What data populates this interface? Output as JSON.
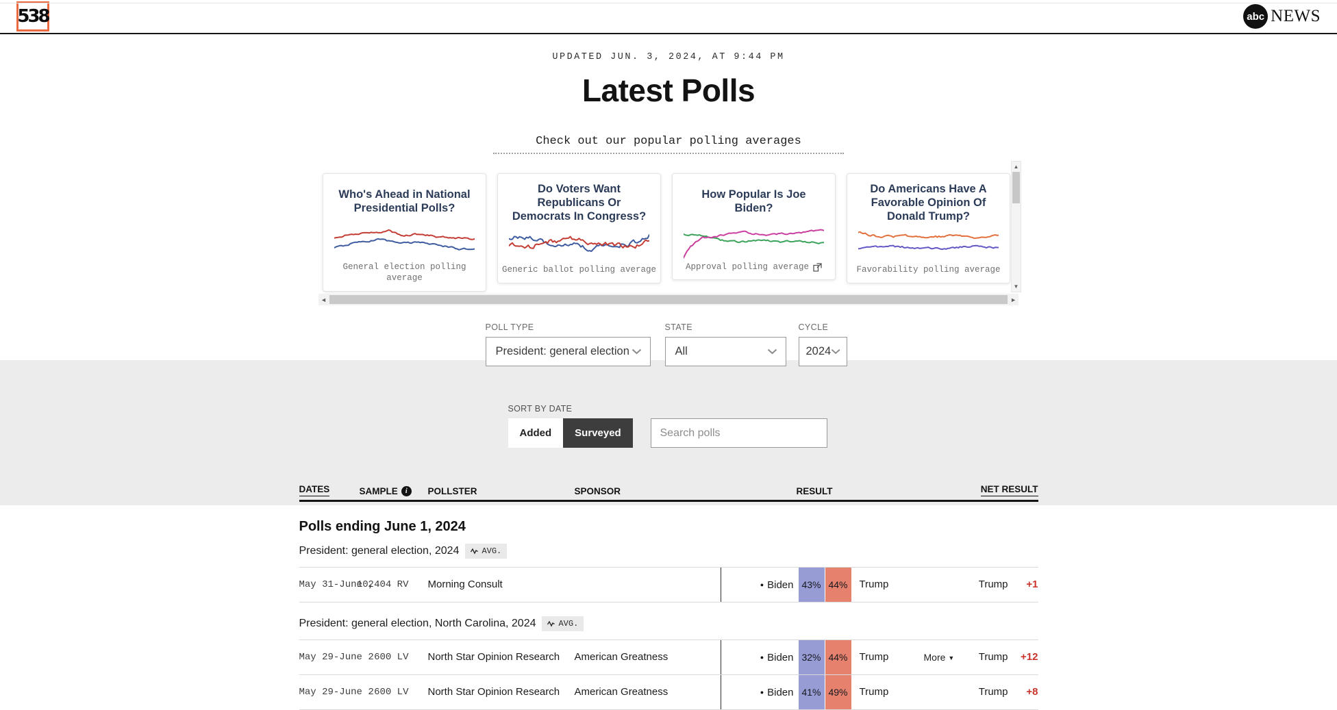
{
  "topbar": {
    "logo": "538",
    "abc": "abc",
    "news": "NEWS"
  },
  "hero": {
    "updated": "UPDATED JUN. 3, 2024, AT 9:44 PM",
    "title": "Latest Polls",
    "tagline": "Check out our popular polling averages"
  },
  "icons": {
    "incumbent_dot": "●",
    "more_caret": "▼",
    "info": "i",
    "scroll_up": "▲",
    "scroll_down": "▼",
    "scroll_left": "◄",
    "scroll_right": "►"
  },
  "carousel": {
    "cards": [
      {
        "title": "Who's Ahead in National Presidential Polls?",
        "caption": "General election polling average",
        "external": false,
        "series": [
          {
            "color": "#c43d34",
            "vol": 0.02,
            "seed": 11,
            "anchors": [
              [
                0,
                0.4
              ],
              [
                0.12,
                0.3
              ],
              [
                0.28,
                0.26
              ],
              [
                0.4,
                0.2
              ],
              [
                0.48,
                0.34
              ],
              [
                0.6,
                0.3
              ],
              [
                0.72,
                0.36
              ],
              [
                0.84,
                0.4
              ],
              [
                1,
                0.42
              ]
            ]
          },
          {
            "color": "#3e5c9f",
            "vol": 0.02,
            "seed": 22,
            "anchors": [
              [
                0,
                0.66
              ],
              [
                0.18,
                0.52
              ],
              [
                0.34,
                0.44
              ],
              [
                0.46,
                0.56
              ],
              [
                0.62,
                0.52
              ],
              [
                0.76,
                0.6
              ],
              [
                0.88,
                0.7
              ],
              [
                1,
                0.72
              ]
            ]
          }
        ]
      },
      {
        "title": "Do Voters Want Republicans Or Democrats In Congress?",
        "caption": "Generic ballot polling average",
        "external": false,
        "series": [
          {
            "color": "#3e5c9f",
            "vol": 0.05,
            "seed": 33,
            "anchors": [
              [
                0,
                0.34
              ],
              [
                0.14,
                0.28
              ],
              [
                0.3,
                0.52
              ],
              [
                0.44,
                0.46
              ],
              [
                0.58,
                0.62
              ],
              [
                0.74,
                0.5
              ],
              [
                0.9,
                0.46
              ],
              [
                0.97,
                0.28
              ],
              [
                1,
                0.22
              ]
            ]
          },
          {
            "color": "#c43d34",
            "vol": 0.05,
            "seed": 44,
            "anchors": [
              [
                0,
                0.5
              ],
              [
                0.14,
                0.58
              ],
              [
                0.3,
                0.4
              ],
              [
                0.44,
                0.36
              ],
              [
                0.58,
                0.44
              ],
              [
                0.74,
                0.52
              ],
              [
                0.9,
                0.54
              ],
              [
                1,
                0.4
              ]
            ]
          }
        ]
      },
      {
        "title": "How Popular Is Joe Biden?",
        "caption": "Approval polling average",
        "external": true,
        "series": [
          {
            "color": "#3ca35a",
            "vol": 0.02,
            "seed": 55,
            "anchors": [
              [
                0,
                0.3
              ],
              [
                0.12,
                0.34
              ],
              [
                0.26,
                0.46
              ],
              [
                0.4,
                0.52
              ],
              [
                0.54,
                0.44
              ],
              [
                0.68,
                0.5
              ],
              [
                0.84,
                0.5
              ],
              [
                1,
                0.54
              ]
            ]
          },
          {
            "color": "#cb3f9f",
            "vol": 0.02,
            "seed": 66,
            "anchors": [
              [
                0,
                0.95
              ],
              [
                0.05,
                0.62
              ],
              [
                0.14,
                0.4
              ],
              [
                0.28,
                0.32
              ],
              [
                0.44,
                0.24
              ],
              [
                0.58,
                0.32
              ],
              [
                0.72,
                0.28
              ],
              [
                0.88,
                0.24
              ],
              [
                1,
                0.2
              ]
            ]
          }
        ]
      },
      {
        "title": "Do Americans Have A Favorable Opinion Of Donald Trump?",
        "caption": "Favorability polling average",
        "external": false,
        "series": [
          {
            "color": "#e2703c",
            "vol": 0.025,
            "seed": 77,
            "anchors": [
              [
                0,
                0.18
              ],
              [
                0.16,
                0.3
              ],
              [
                0.34,
                0.28
              ],
              [
                0.52,
                0.32
              ],
              [
                0.68,
                0.24
              ],
              [
                0.84,
                0.32
              ],
              [
                1,
                0.28
              ]
            ]
          },
          {
            "color": "#6457c6",
            "vol": 0.02,
            "seed": 88,
            "anchors": [
              [
                0,
                0.6
              ],
              [
                0.2,
                0.55
              ],
              [
                0.4,
                0.59
              ],
              [
                0.6,
                0.61
              ],
              [
                0.8,
                0.55
              ],
              [
                1,
                0.6
              ]
            ]
          }
        ]
      }
    ]
  },
  "filters": [
    {
      "label": "POLL TYPE",
      "value": "President: general election"
    },
    {
      "label": "STATE",
      "value": "All"
    },
    {
      "label": "CYCLE",
      "value": "2024"
    }
  ],
  "sort": {
    "label": "SORT BY DATE",
    "options": [
      {
        "label": "Added",
        "active": false
      },
      {
        "label": "Surveyed",
        "active": true
      }
    ]
  },
  "search": {
    "placeholder": "Search polls"
  },
  "table": {
    "headers": {
      "dates": "DATES",
      "sample": "SAMPLE",
      "pollster": "POLLSTER",
      "sponsor": "SPONSOR",
      "result": "RESULT",
      "net": "NET RESULT"
    },
    "group_title": "Polls ending June 1, 2024",
    "avg_badge": "AVG.",
    "more_label": "More",
    "colors": {
      "dem_box": "#979dd4",
      "rep_box": "#e5816c",
      "net_value": "#c9332b"
    },
    "sections": [
      {
        "subtitle": "President: general election, 2024",
        "rows": [
          {
            "dates": "May 31-June 2",
            "sample": "10,404 RV",
            "pollster": "Morning Consult",
            "sponsor": "",
            "dem_name": "Biden",
            "dem_pct": "43%",
            "rep_pct": "44%",
            "rep_name": "Trump",
            "more": false,
            "net_name": "Trump",
            "net_value": "+1"
          }
        ]
      },
      {
        "subtitle": "President: general election, North Carolina, 2024",
        "rows": [
          {
            "dates": "May 29-June 2",
            "sample": "600 LV",
            "pollster": "North Star Opinion Research",
            "sponsor": "American Greatness",
            "dem_name": "Biden",
            "dem_pct": "32%",
            "rep_pct": "44%",
            "rep_name": "Trump",
            "more": true,
            "net_name": "Trump",
            "net_value": "+12"
          },
          {
            "dates": "May 29-June 2",
            "sample": "600 LV",
            "pollster": "North Star Opinion Research",
            "sponsor": "American Greatness",
            "dem_name": "Biden",
            "dem_pct": "41%",
            "rep_pct": "49%",
            "rep_name": "Trump",
            "more": false,
            "net_name": "Trump",
            "net_value": "+8"
          }
        ]
      }
    ]
  }
}
